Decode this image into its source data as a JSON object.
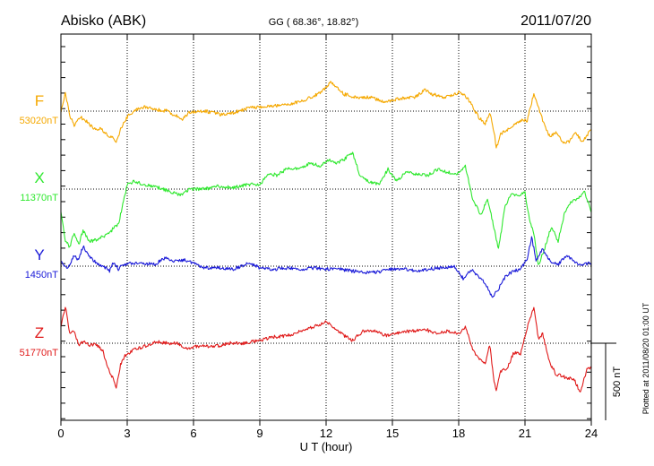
{
  "header": {
    "station": "Abisko (ABK)",
    "coords": "GG ( 68.36°,  18.82°)",
    "date": "2011/07/20"
  },
  "footer": {
    "plotted": "Plotted at 2011/08/20 01:00 UT"
  },
  "chart_data": {
    "type": "line",
    "title": "Abisko (ABK) 2011/07/20",
    "xlabel": "U T (hour)",
    "xlim": [
      0,
      24
    ],
    "x_ticks": [
      0,
      3,
      6,
      9,
      12,
      15,
      18,
      21,
      24
    ],
    "x_tick_labels": [
      "0",
      "3",
      "6",
      "9",
      "12",
      "15",
      "18",
      "21",
      "24"
    ],
    "scale_bar": {
      "label": "500 nT",
      "value_nT": 500
    },
    "baseline_unit": "nT",
    "series": [
      {
        "name": "F",
        "baseline": "53020nT",
        "baseline_value": 53020,
        "color": "#f5a800",
        "points": [
          [
            0,
            0
          ],
          [
            0.2,
            120
          ],
          [
            0.4,
            -30
          ],
          [
            0.6,
            -90
          ],
          [
            0.9,
            -40
          ],
          [
            1.2,
            -70
          ],
          [
            1.5,
            -120
          ],
          [
            1.8,
            -110
          ],
          [
            2.1,
            -160
          ],
          [
            2.3,
            -170
          ],
          [
            2.5,
            -200
          ],
          [
            2.7,
            -120
          ],
          [
            2.9,
            -60
          ],
          [
            3.1,
            -20
          ],
          [
            3.4,
            10
          ],
          [
            3.8,
            30
          ],
          [
            4.3,
            10
          ],
          [
            4.8,
            0
          ],
          [
            5.2,
            -30
          ],
          [
            5.5,
            -50
          ],
          [
            5.8,
            -10
          ],
          [
            6.5,
            0
          ],
          [
            7.2,
            -20
          ],
          [
            7.8,
            -10
          ],
          [
            8.5,
            20
          ],
          [
            9.2,
            30
          ],
          [
            10,
            40
          ],
          [
            10.8,
            60
          ],
          [
            11.5,
            100
          ],
          [
            11.9,
            140
          ],
          [
            12.2,
            190
          ],
          [
            12.5,
            150
          ],
          [
            12.8,
            110
          ],
          [
            13.4,
            90
          ],
          [
            14,
            90
          ],
          [
            14.6,
            60
          ],
          [
            15.3,
            80
          ],
          [
            16,
            90
          ],
          [
            16.5,
            140
          ],
          [
            16.8,
            110
          ],
          [
            17.3,
            90
          ],
          [
            18,
            120
          ],
          [
            18.3,
            100
          ],
          [
            18.6,
            40
          ],
          [
            18.9,
            -40
          ],
          [
            19.2,
            -80
          ],
          [
            19.4,
            -10
          ],
          [
            19.6,
            -130
          ],
          [
            19.7,
            -240
          ],
          [
            19.9,
            -150
          ],
          [
            20.2,
            -120
          ],
          [
            20.5,
            -90
          ],
          [
            20.8,
            -60
          ],
          [
            21.1,
            -60
          ],
          [
            21.4,
            110
          ],
          [
            21.6,
            30
          ],
          [
            21.8,
            -60
          ],
          [
            22.1,
            -160
          ],
          [
            22.4,
            -140
          ],
          [
            22.7,
            -200
          ],
          [
            23.0,
            -200
          ],
          [
            23.3,
            -140
          ],
          [
            23.6,
            -200
          ],
          [
            24,
            -120
          ]
        ]
      },
      {
        "name": "X",
        "baseline": "11370nT",
        "baseline_value": 11370,
        "color": "#2ee82e",
        "points": [
          [
            0,
            -140
          ],
          [
            0.2,
            -330
          ],
          [
            0.4,
            -380
          ],
          [
            0.6,
            -280
          ],
          [
            0.8,
            -360
          ],
          [
            1.0,
            -270
          ],
          [
            1.3,
            -340
          ],
          [
            1.6,
            -330
          ],
          [
            1.8,
            -310
          ],
          [
            2.1,
            -300
          ],
          [
            2.4,
            -250
          ],
          [
            2.6,
            -230
          ],
          [
            2.8,
            -100
          ],
          [
            3.0,
            30
          ],
          [
            3.3,
            50
          ],
          [
            3.8,
            30
          ],
          [
            4.2,
            20
          ],
          [
            4.6,
            0
          ],
          [
            5.0,
            -20
          ],
          [
            5.4,
            -40
          ],
          [
            5.8,
            0
          ],
          [
            6.5,
            0
          ],
          [
            7.2,
            20
          ],
          [
            7.8,
            10
          ],
          [
            8.5,
            30
          ],
          [
            9.0,
            30
          ],
          [
            9.4,
            100
          ],
          [
            9.8,
            90
          ],
          [
            10.3,
            140
          ],
          [
            10.8,
            130
          ],
          [
            11.3,
            170
          ],
          [
            11.7,
            150
          ],
          [
            12.1,
            190
          ],
          [
            12.5,
            170
          ],
          [
            12.8,
            190
          ],
          [
            13.2,
            240
          ],
          [
            13.5,
            100
          ],
          [
            13.9,
            50
          ],
          [
            14.4,
            30
          ],
          [
            14.8,
            130
          ],
          [
            15.2,
            50
          ],
          [
            15.6,
            110
          ],
          [
            16.1,
            100
          ],
          [
            16.6,
            90
          ],
          [
            17.1,
            130
          ],
          [
            17.5,
            110
          ],
          [
            18.0,
            100
          ],
          [
            18.3,
            150
          ],
          [
            18.6,
            -50
          ],
          [
            19.0,
            -170
          ],
          [
            19.3,
            -60
          ],
          [
            19.6,
            -250
          ],
          [
            19.8,
            -390
          ],
          [
            20.1,
            -110
          ],
          [
            20.4,
            -30
          ],
          [
            20.7,
            -40
          ],
          [
            21.0,
            -20
          ],
          [
            21.2,
            -200
          ],
          [
            21.4,
            -290
          ],
          [
            21.6,
            -500
          ],
          [
            21.9,
            -380
          ],
          [
            22.2,
            -240
          ],
          [
            22.5,
            -340
          ],
          [
            22.8,
            -150
          ],
          [
            23.1,
            -80
          ],
          [
            23.4,
            -60
          ],
          [
            23.7,
            -20
          ],
          [
            24,
            -150
          ]
        ]
      },
      {
        "name": "Y",
        "baseline": "1450nT",
        "baseline_value": 1450,
        "color": "#1a1ad8",
        "points": [
          [
            0,
            30
          ],
          [
            0.3,
            -20
          ],
          [
            0.6,
            70
          ],
          [
            0.8,
            40
          ],
          [
            1.0,
            130
          ],
          [
            1.3,
            60
          ],
          [
            1.6,
            20
          ],
          [
            1.9,
            0
          ],
          [
            2.2,
            -30
          ],
          [
            2.4,
            30
          ],
          [
            2.6,
            -20
          ],
          [
            2.8,
            10
          ],
          [
            3.2,
            20
          ],
          [
            3.7,
            20
          ],
          [
            4.2,
            10
          ],
          [
            4.7,
            50
          ],
          [
            5.2,
            30
          ],
          [
            5.6,
            40
          ],
          [
            6.0,
            20
          ],
          [
            6.5,
            -10
          ],
          [
            7.2,
            -10
          ],
          [
            7.8,
            -20
          ],
          [
            8.5,
            20
          ],
          [
            9.0,
            -10
          ],
          [
            9.6,
            -20
          ],
          [
            10.3,
            -10
          ],
          [
            10.9,
            -20
          ],
          [
            11.5,
            -10
          ],
          [
            12.0,
            -20
          ],
          [
            12.6,
            -20
          ],
          [
            13.1,
            -30
          ],
          [
            13.7,
            -40
          ],
          [
            14.3,
            -40
          ],
          [
            14.8,
            -20
          ],
          [
            15.5,
            -20
          ],
          [
            16.0,
            -30
          ],
          [
            16.6,
            -20
          ],
          [
            17.2,
            -10
          ],
          [
            17.8,
            0
          ],
          [
            18.2,
            -80
          ],
          [
            18.6,
            -20
          ],
          [
            18.9,
            -70
          ],
          [
            19.2,
            -110
          ],
          [
            19.5,
            -200
          ],
          [
            19.8,
            -150
          ],
          [
            20.1,
            -70
          ],
          [
            20.5,
            -30
          ],
          [
            20.8,
            -20
          ],
          [
            21.1,
            50
          ],
          [
            21.3,
            190
          ],
          [
            21.5,
            40
          ],
          [
            21.8,
            110
          ],
          [
            22.1,
            40
          ],
          [
            22.5,
            10
          ],
          [
            22.9,
            70
          ],
          [
            23.4,
            10
          ],
          [
            24,
            20
          ]
        ]
      },
      {
        "name": "Z",
        "baseline": "51770nT",
        "baseline_value": 51770,
        "color": "#e01a1a",
        "points": [
          [
            0,
            110
          ],
          [
            0.2,
            240
          ],
          [
            0.4,
            60
          ],
          [
            0.6,
            80
          ],
          [
            0.8,
            -10
          ],
          [
            1.0,
            10
          ],
          [
            1.3,
            -10
          ],
          [
            1.6,
            -10
          ],
          [
            1.9,
            -50
          ],
          [
            2.1,
            -160
          ],
          [
            2.3,
            -210
          ],
          [
            2.5,
            -290
          ],
          [
            2.7,
            -140
          ],
          [
            2.9,
            -80
          ],
          [
            3.3,
            -40
          ],
          [
            3.8,
            -20
          ],
          [
            4.3,
            10
          ],
          [
            4.8,
            0
          ],
          [
            5.2,
            0
          ],
          [
            5.7,
            -30
          ],
          [
            6.3,
            -20
          ],
          [
            7.0,
            -20
          ],
          [
            7.6,
            0
          ],
          [
            8.3,
            0
          ],
          [
            9.0,
            20
          ],
          [
            9.6,
            40
          ],
          [
            10.3,
            50
          ],
          [
            10.9,
            80
          ],
          [
            11.5,
            110
          ],
          [
            12.0,
            140
          ],
          [
            12.4,
            100
          ],
          [
            12.8,
            50
          ],
          [
            13.2,
            20
          ],
          [
            13.7,
            80
          ],
          [
            14.2,
            80
          ],
          [
            14.7,
            50
          ],
          [
            15.3,
            70
          ],
          [
            15.9,
            80
          ],
          [
            16.5,
            90
          ],
          [
            17.0,
            60
          ],
          [
            17.5,
            80
          ],
          [
            18.0,
            60
          ],
          [
            18.3,
            110
          ],
          [
            18.6,
            -30
          ],
          [
            18.9,
            -100
          ],
          [
            19.2,
            -130
          ],
          [
            19.4,
            -10
          ],
          [
            19.6,
            -240
          ],
          [
            19.7,
            -300
          ],
          [
            19.9,
            -180
          ],
          [
            20.2,
            -160
          ],
          [
            20.5,
            -60
          ],
          [
            20.8,
            -70
          ],
          [
            21.1,
            100
          ],
          [
            21.4,
            230
          ],
          [
            21.6,
            30
          ],
          [
            21.8,
            60
          ],
          [
            22.1,
            -120
          ],
          [
            22.4,
            -200
          ],
          [
            22.8,
            -220
          ],
          [
            23.2,
            -230
          ],
          [
            23.5,
            -320
          ],
          [
            23.8,
            -170
          ],
          [
            24,
            -160
          ]
        ]
      }
    ]
  }
}
